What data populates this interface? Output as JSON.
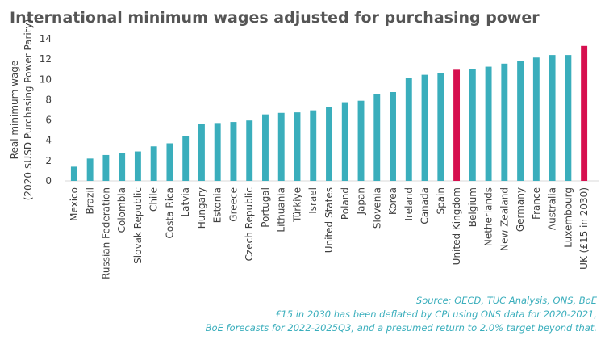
{
  "chart_data": {
    "type": "bar",
    "title": "International minimum wages adjusted for purchasing power",
    "y_label": [
      "Real minimum wage",
      "(2020 $USD Purchasing Power Parity)"
    ],
    "categories": [
      "Mexico",
      "Brazil",
      "Russian Federation",
      "Colombia",
      "Slovak Republic",
      "Chile",
      "Costa Rica",
      "Latvia",
      "Hungary",
      "Estonia",
      "Greece",
      "Czech Republic",
      "Portugal",
      "Lithuania",
      "Türkiye",
      "Israel",
      "United States",
      "Poland",
      "Japan",
      "Slovenia",
      "Korea",
      "Ireland",
      "Canada",
      "Spain",
      "United Kingdom",
      "Belgium",
      "Netherlands",
      "New Zealand",
      "Germany",
      "France",
      "Australia",
      "Luxembourg",
      "UK (£15 in 2030)"
    ],
    "values": [
      1.4,
      2.2,
      2.55,
      2.75,
      2.9,
      3.4,
      3.7,
      4.4,
      5.6,
      5.7,
      5.8,
      5.95,
      6.55,
      6.7,
      6.75,
      6.95,
      7.25,
      7.75,
      7.9,
      8.55,
      8.75,
      10.15,
      10.45,
      10.6,
      10.95,
      11.0,
      11.25,
      11.55,
      11.8,
      12.15,
      12.4,
      12.4,
      13.3
    ],
    "colors": [
      "#3aaebc",
      "#3aaebc",
      "#3aaebc",
      "#3aaebc",
      "#3aaebc",
      "#3aaebc",
      "#3aaebc",
      "#3aaebc",
      "#3aaebc",
      "#3aaebc",
      "#3aaebc",
      "#3aaebc",
      "#3aaebc",
      "#3aaebc",
      "#3aaebc",
      "#3aaebc",
      "#3aaebc",
      "#3aaebc",
      "#3aaebc",
      "#3aaebc",
      "#3aaebc",
      "#3aaebc",
      "#3aaebc",
      "#3aaebc",
      "#d6104f",
      "#3aaebc",
      "#3aaebc",
      "#3aaebc",
      "#3aaebc",
      "#3aaebc",
      "#3aaebc",
      "#3aaebc",
      "#d6104f"
    ],
    "ylim": [
      0,
      14
    ],
    "yticks": [
      0,
      2,
      4,
      6,
      8,
      10,
      12,
      14
    ],
    "grid": false,
    "notes": [
      "Source: OECD, TUC Analysis, ONS, BoE",
      "£15 in 2030 has been deflated by CPI using ONS data for 2020-2021,",
      "BoE forecasts for 2022-2025Q3, and a presumed return to 2.0% target beyond that."
    ]
  }
}
